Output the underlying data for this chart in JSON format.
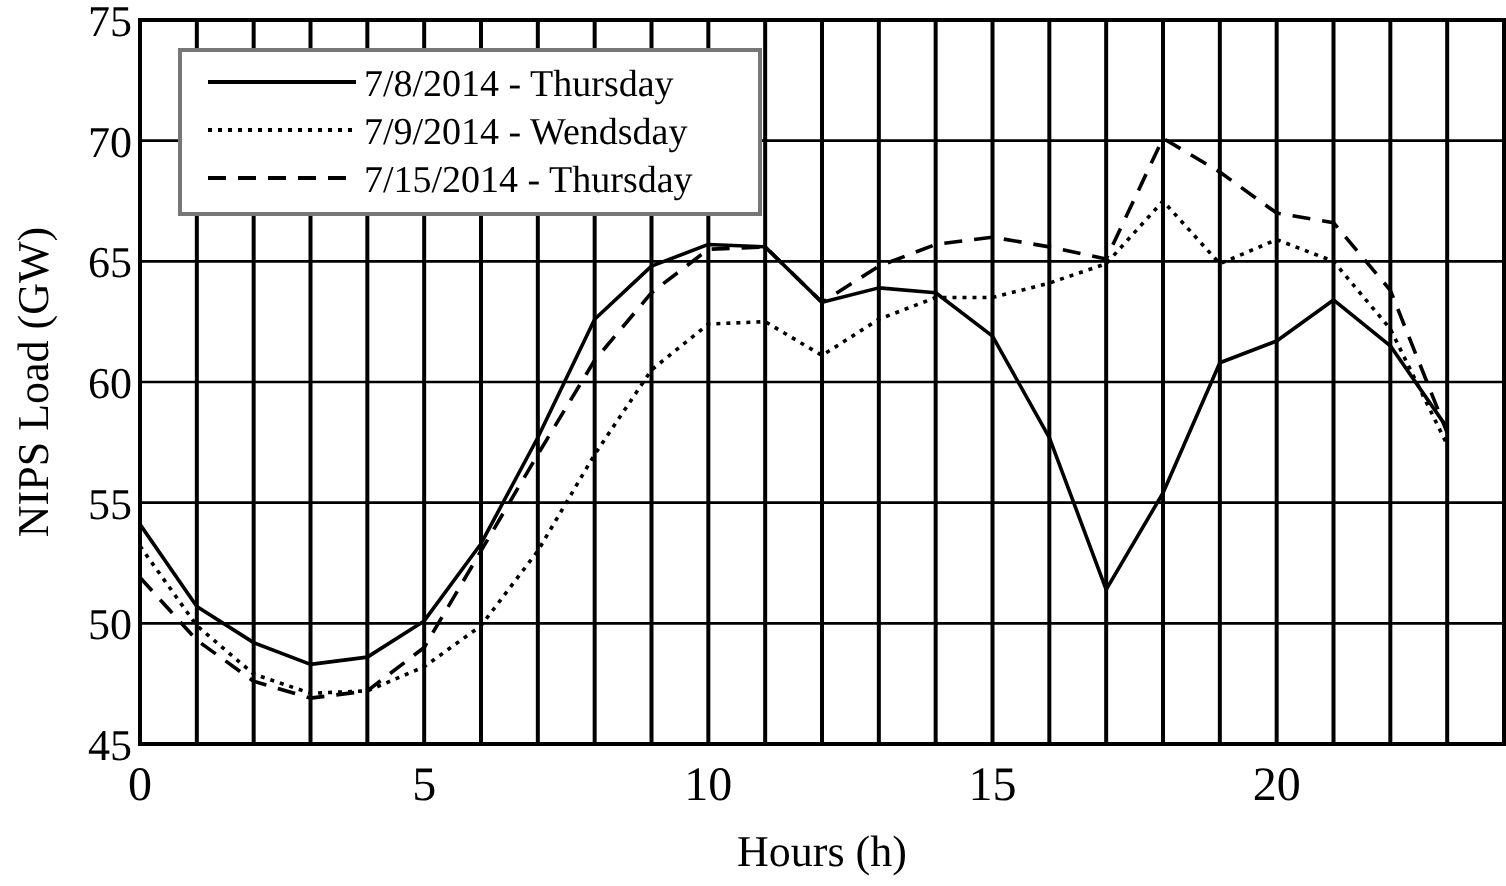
{
  "chart_data": {
    "type": "line",
    "xlabel": "Hours (h)",
    "ylabel": "NIPS Load (GW)",
    "x": [
      0,
      1,
      2,
      3,
      4,
      5,
      6,
      7,
      8,
      9,
      10,
      11,
      12,
      13,
      14,
      15,
      16,
      17,
      18,
      19,
      20,
      21,
      22,
      23
    ],
    "xlim": [
      0,
      24
    ],
    "xticks": [
      0,
      {
        "value": 1,
        "label": null
      },
      {
        "value": 2,
        "label": null
      },
      {
        "value": 3,
        "label": null
      },
      {
        "value": 4,
        "label": null
      },
      5,
      {
        "value": 6,
        "label": null
      },
      {
        "value": 7,
        "label": null
      },
      {
        "value": 8,
        "label": null
      },
      {
        "value": 9,
        "label": null
      },
      10,
      {
        "value": 11,
        "label": null
      },
      {
        "value": 12,
        "label": null
      },
      {
        "value": 13,
        "label": null
      },
      {
        "value": 14,
        "label": null
      },
      15,
      {
        "value": 16,
        "label": null
      },
      {
        "value": 17,
        "label": null
      },
      {
        "value": 18,
        "label": null
      },
      {
        "value": 19,
        "label": null
      },
      20,
      {
        "value": 21,
        "label": null
      },
      {
        "value": 22,
        "label": null
      },
      {
        "value": 23,
        "label": null
      },
      {
        "value": 24,
        "label": null
      }
    ],
    "ylim": [
      45,
      75
    ],
    "yticks": [
      45,
      50,
      55,
      60,
      65,
      70,
      75
    ],
    "grid": true,
    "legend": "top left",
    "marker": "none",
    "series": [
      {
        "name": "7/8/2014 - Thursday",
        "color": "#000000",
        "line_style": "solid",
        "values": [
          54.1,
          50.7,
          49.2,
          48.3,
          48.6,
          50.1,
          53.3,
          57.7,
          62.6,
          64.8,
          65.7,
          65.6,
          63.3,
          63.9,
          63.7,
          61.9,
          57.7,
          51.4,
          55.4,
          60.8,
          61.7,
          63.4,
          61.5,
          58.1
        ]
      },
      {
        "name": "7/9/2014 - Wendsday",
        "color": "#000000",
        "line_style": "dotted",
        "values": [
          53.2,
          49.9,
          47.9,
          47.1,
          47.2,
          48.2,
          49.9,
          53.0,
          57.0,
          60.5,
          62.4,
          62.5,
          61.1,
          62.6,
          63.5,
          63.5,
          64.1,
          64.9,
          67.5,
          64.9,
          65.9,
          65.0,
          62.2,
          57.4
        ]
      },
      {
        "name": "7/15/2014 - Thursday",
        "color": "#000000",
        "line_style": "dashed",
        "values": [
          51.9,
          49.3,
          47.6,
          46.9,
          47.2,
          49.0,
          53.0,
          57.0,
          60.9,
          63.7,
          65.5,
          65.6,
          63.3,
          64.8,
          65.7,
          66.0,
          65.6,
          65.1,
          70.1,
          68.7,
          67.0,
          66.6,
          63.8,
          57.9
        ]
      }
    ]
  }
}
